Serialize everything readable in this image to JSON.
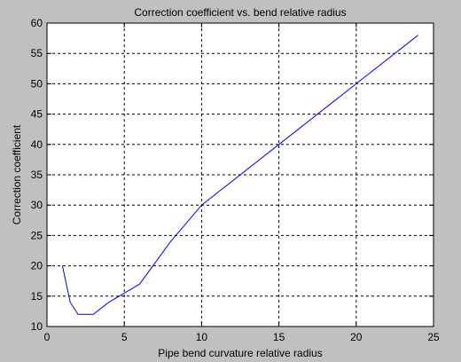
{
  "chart_data": {
    "type": "line",
    "title": "Correction coefficient vs. bend relative radius",
    "xlabel": "Pipe bend curvature relative radius",
    "ylabel": "Correction coefficient",
    "xlim": [
      0,
      25
    ],
    "ylim": [
      10,
      60
    ],
    "xticks": [
      0,
      5,
      10,
      15,
      20,
      25
    ],
    "yticks": [
      10,
      15,
      20,
      25,
      30,
      35,
      40,
      45,
      50,
      55,
      60
    ],
    "grid": true,
    "grid_style": "dashed",
    "background_color": "#c0c0c0",
    "axes_color": "#ffffff",
    "line_color": "#0000ff",
    "series": [
      {
        "x": [
          1,
          1.5,
          2,
          3,
          4,
          5,
          6,
          8,
          10,
          15,
          20,
          24
        ],
        "y": [
          20,
          14,
          12,
          12,
          14,
          15.5,
          17,
          24,
          30,
          40,
          50,
          58
        ]
      }
    ]
  }
}
